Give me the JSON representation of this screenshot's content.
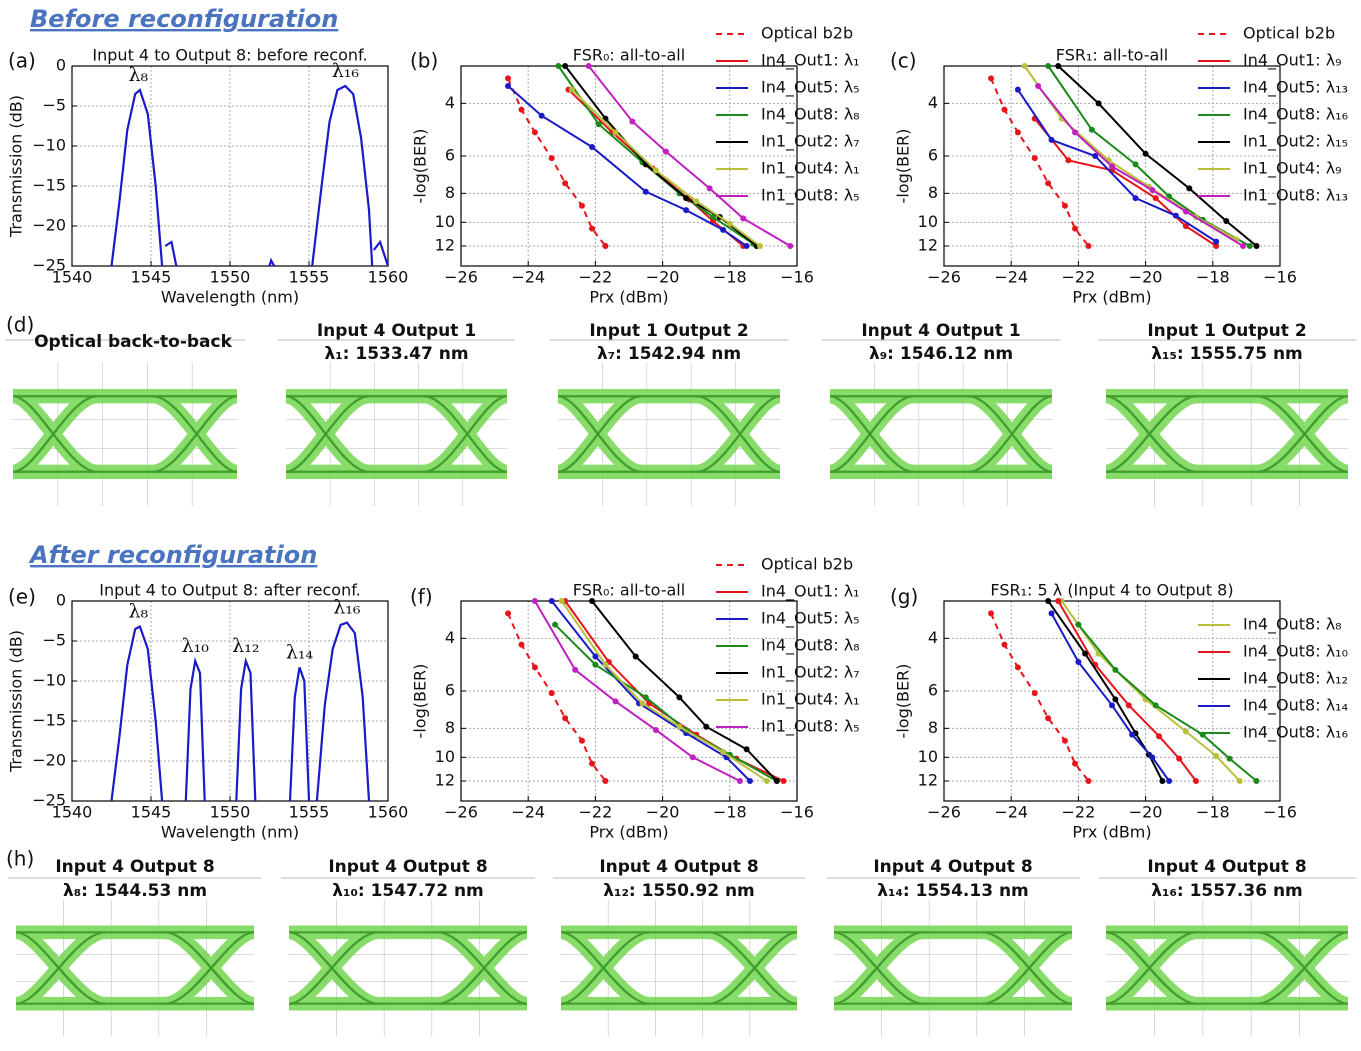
{
  "sections": [
    "Before reconfiguration",
    "After reconfiguration"
  ],
  "panel_labels": [
    "(a)",
    "(b)",
    "(c)",
    "(d)",
    "(e)",
    "(f)",
    "(g)",
    "(h)"
  ],
  "chart_data": [
    {
      "type": "line",
      "title": "Input 4 to Output 8: before reconf.",
      "x_label": "Wavelength (nm)",
      "y_label": "Transmission (dB)",
      "xlim": [
        1540,
        1560
      ],
      "xticks": [
        1540,
        1545,
        1550,
        1555,
        1560
      ],
      "ylim": [
        -25,
        0
      ],
      "yticks": [
        0,
        {
          "value": -5,
          "label": "−5"
        },
        {
          "value": -10,
          "label": "−10"
        },
        {
          "value": -15,
          "label": "−15"
        },
        {
          "value": -20,
          "label": "−20"
        },
        {
          "value": -25,
          "label": "−25"
        }
      ],
      "grid": true,
      "series": [
        {
          "color": "#1a1ac8",
          "x": [
            1542.5,
            1543.0,
            1543.5,
            1544.0,
            1544.3,
            1544.8,
            1545.3,
            1545.7,
            1545.8,
            1545.9,
            1546.3,
            1546.6,
            1549,
            1552.5,
            1552.6,
            1552.8,
            1554,
            1555.2,
            1555.8,
            1556.3,
            1556.8,
            1557.3,
            1557.8,
            1558.3,
            1558.8,
            1559.0,
            1559.05,
            1559.1,
            1559.5,
            1560
          ],
          "values": [
            -25,
            -17,
            -8,
            -3.5,
            -3.0,
            -6,
            -15,
            -25,
            null,
            -22.5,
            -22,
            -25,
            null,
            -25,
            -24.3,
            -25,
            null,
            -25,
            -15,
            -7,
            -3,
            -2.5,
            -3.5,
            -9,
            -18,
            -25,
            null,
            -23,
            -22,
            -25
          ]
        }
      ],
      "annotations": [
        {
          "text": "λ₈",
          "x": 1544.2,
          "y": -3
        },
        {
          "text": "λ₁₆",
          "x": 1557.3,
          "y": -2.5
        }
      ]
    },
    {
      "type": "line",
      "markers": true,
      "title": "FSR₀: all-to-all",
      "x_label": "Prx (dBm)",
      "y_label": "-log(BER)",
      "xlim": [
        -26,
        -16
      ],
      "xticks": [
        {
          "value": -26,
          "label": "−26"
        },
        {
          "value": -24,
          "label": "−24"
        },
        {
          "value": -22,
          "label": "−22"
        },
        {
          "value": -20,
          "label": "−20"
        },
        {
          "value": -18,
          "label": "−18"
        },
        {
          "value": -16,
          "label": "−16"
        }
      ],
      "ylim": [
        3,
        14
      ],
      "log_y": true,
      "y_inverted": true,
      "yticks": [
        4,
        6,
        8,
        10,
        12
      ],
      "grid": true,
      "legend": "outside right",
      "series": [
        {
          "name": "Optical b2b",
          "color": "#e8141c",
          "dashed": true,
          "x": [
            -24.6,
            -24.2,
            -23.8,
            -23.3,
            -22.9,
            -22.4,
            -22.1,
            -21.7
          ],
          "values": [
            3.3,
            4.2,
            5.0,
            6.1,
            7.4,
            8.8,
            10.5,
            12
          ]
        },
        {
          "name": "In4_Out1: λ₁",
          "color": "#e8141c",
          "x": [
            -22.8,
            -21.5,
            -20.3,
            -19.2,
            -18.5,
            -17.6
          ],
          "values": [
            3.6,
            5.0,
            6.6,
            8.4,
            9.9,
            12
          ]
        },
        {
          "name": "In4_Out5: λ₅",
          "color": "#1a1ac8",
          "x": [
            -24.6,
            -23.6,
            -22.1,
            -20.5,
            -19.3,
            -18.2,
            -17.5
          ],
          "values": [
            3.5,
            4.4,
            5.6,
            7.9,
            9.1,
            10.6,
            12
          ]
        },
        {
          "name": "In4_Out8: λ₈",
          "color": "#1a8a1a",
          "x": [
            -23.1,
            -21.9,
            -20.6,
            -19.5,
            -18.5,
            -17.3
          ],
          "values": [
            3.0,
            4.7,
            6.3,
            8.0,
            9.6,
            11.8
          ]
        },
        {
          "name": "In1_Out2: λ₇",
          "color": "#000000",
          "x": [
            -22.9,
            -21.7,
            -20.5,
            -19.3,
            -18.3,
            -17.2
          ],
          "values": [
            3.0,
            4.5,
            6.4,
            8.3,
            9.6,
            12
          ]
        },
        {
          "name": "In1_Out4: λ₁",
          "color": "#b8c03a",
          "x": [
            -22.7,
            -21.4,
            -20.2,
            -19.0,
            -18.0,
            -17.1
          ],
          "values": [
            3.6,
            5.0,
            6.7,
            8.5,
            10.1,
            12
          ]
        },
        {
          "name": "In1_Out8: λ₅",
          "color": "#c020c0",
          "x": [
            -22.2,
            -20.9,
            -19.9,
            -18.6,
            -17.6,
            -16.2
          ],
          "values": [
            3.0,
            4.6,
            5.8,
            7.7,
            9.7,
            12
          ]
        }
      ]
    },
    {
      "type": "line",
      "markers": true,
      "title": "FSR₁: all-to-all",
      "x_label": "Prx (dBm)",
      "y_label": "-log(BER)",
      "xlim": [
        -26,
        -16
      ],
      "xticks": [
        {
          "value": -26,
          "label": "−26"
        },
        {
          "value": -24,
          "label": "−24"
        },
        {
          "value": -22,
          "label": "−22"
        },
        {
          "value": -20,
          "label": "−20"
        },
        {
          "value": -18,
          "label": "−18"
        },
        {
          "value": -16,
          "label": "−16"
        }
      ],
      "ylim": [
        3,
        14
      ],
      "log_y": true,
      "y_inverted": true,
      "yticks": [
        4,
        6,
        8,
        10,
        12
      ],
      "grid": true,
      "legend": "outside right",
      "series": [
        {
          "name": "Optical b2b",
          "color": "#e8141c",
          "dashed": true,
          "x": [
            -24.6,
            -24.2,
            -23.8,
            -23.3,
            -22.9,
            -22.4,
            -22.1,
            -21.7
          ],
          "values": [
            3.3,
            4.2,
            5.0,
            6.1,
            7.4,
            8.8,
            10.5,
            12
          ]
        },
        {
          "name": "In4_Out1: λ₉",
          "color": "#e8141c",
          "x": [
            -23.3,
            -22.3,
            -21.0,
            -19.7,
            -18.8,
            -17.9
          ],
          "values": [
            4.5,
            6.2,
            6.7,
            8.3,
            10.3,
            12
          ]
        },
        {
          "name": "In4_Out5: λ₁₃",
          "color": "#1a1ac8",
          "x": [
            -23.8,
            -22.8,
            -21.5,
            -20.3,
            -19.1,
            -17.9
          ],
          "values": [
            3.6,
            5.3,
            6.0,
            8.3,
            9.5,
            11.6
          ]
        },
        {
          "name": "In4_Out8: λ₁₆",
          "color": "#1a8a1a",
          "x": [
            -22.9,
            -21.6,
            -20.3,
            -19.3,
            -18.3,
            -16.9
          ],
          "values": [
            3.0,
            4.9,
            6.4,
            8.2,
            9.8,
            12
          ]
        },
        {
          "name": "In1_Out2: λ₁₅",
          "color": "#000000",
          "x": [
            -22.6,
            -21.4,
            -20.0,
            -18.7,
            -17.6,
            -16.7
          ],
          "values": [
            3.0,
            4.0,
            5.9,
            7.7,
            9.9,
            12
          ]
        },
        {
          "name": "In1_Out4: λ₉",
          "color": "#b8c03a",
          "x": [
            -23.6,
            -22.5,
            -21.1,
            -19.9,
            -18.5,
            -17.3
          ],
          "values": [
            3.0,
            4.5,
            6.2,
            7.6,
            9.6,
            11.4
          ]
        },
        {
          "name": "In1_Out8: λ₁₃",
          "color": "#c020c0",
          "x": [
            -23.2,
            -22.1,
            -21.0,
            -19.8,
            -18.8,
            -17.1
          ],
          "values": [
            3.5,
            5.0,
            6.5,
            7.8,
            9.2,
            12
          ]
        }
      ]
    },
    {
      "type": "line",
      "title": "Input 4 to Output 8: after reconf.",
      "x_label": "Wavelength (nm)",
      "y_label": "Transmission (dB)",
      "xlim": [
        1540,
        1560
      ],
      "xticks": [
        1540,
        1545,
        1550,
        1555,
        1560
      ],
      "ylim": [
        -25,
        0
      ],
      "yticks": [
        0,
        {
          "value": -5,
          "label": "−5"
        },
        {
          "value": -10,
          "label": "−10"
        },
        {
          "value": -15,
          "label": "−15"
        },
        {
          "value": -20,
          "label": "−20"
        },
        {
          "value": -25,
          "label": "−25"
        }
      ],
      "grid": true,
      "series": [
        {
          "color": "#1a1ac8",
          "x": [
            1542.5,
            1543,
            1543.5,
            1544,
            1544.3,
            1544.8,
            1545.3,
            1545.7,
            1546.5,
            1547.2,
            1547.5,
            1547.8,
            1548.1,
            1548.4,
            1549.5,
            1550.4,
            1550.7,
            1551.0,
            1551.3,
            1551.6,
            1552.7,
            1553.8,
            1554.1,
            1554.4,
            1554.7,
            1555.0,
            1555.2,
            1555.5,
            1556,
            1556.5,
            1557,
            1557.4,
            1557.9,
            1558.4,
            1558.8
          ],
          "values": [
            -25,
            -17,
            -8,
            -3.5,
            -3.2,
            -6,
            -15,
            -25,
            null,
            -25,
            -11,
            -7.5,
            -9,
            -25,
            null,
            -25,
            -11,
            -7.5,
            -9,
            -25,
            null,
            -25,
            -12,
            -8.3,
            -10,
            -25,
            null,
            -25,
            -13,
            -6,
            -3,
            -2.7,
            -4,
            -12,
            -25
          ]
        }
      ],
      "annotations": [
        {
          "text": "λ₈",
          "x": 1544.2,
          "y": -3.2
        },
        {
          "text": "λ₁₀",
          "x": 1547.8,
          "y": -7.5
        },
        {
          "text": "λ₁₂",
          "x": 1551,
          "y": -7.5
        },
        {
          "text": "λ₁₄",
          "x": 1554.4,
          "y": -8.3
        },
        {
          "text": "λ₁₆",
          "x": 1557.4,
          "y": -2.7
        }
      ]
    },
    {
      "type": "line",
      "markers": true,
      "title": "FSR₀: all-to-all",
      "x_label": "Prx (dBm)",
      "y_label": "-log(BER)",
      "xlim": [
        -26,
        -16
      ],
      "xticks": [
        {
          "value": -26,
          "label": "−26"
        },
        {
          "value": -24,
          "label": "−24"
        },
        {
          "value": -22,
          "label": "−22"
        },
        {
          "value": -20,
          "label": "−20"
        },
        {
          "value": -18,
          "label": "−18"
        },
        {
          "value": -16,
          "label": "−16"
        }
      ],
      "ylim": [
        3,
        14
      ],
      "log_y": true,
      "y_inverted": true,
      "yticks": [
        4,
        6,
        8,
        10,
        12
      ],
      "grid": true,
      "legend": "outside right",
      "series": [
        {
          "name": "Optical b2b",
          "color": "#e8141c",
          "dashed": true,
          "x": [
            -24.6,
            -24.2,
            -23.8,
            -23.3,
            -22.9,
            -22.4,
            -22.1,
            -21.7
          ],
          "values": [
            3.3,
            4.2,
            5.0,
            6.1,
            7.4,
            8.8,
            10.5,
            12
          ]
        },
        {
          "name": "In4_Out1: λ₁",
          "color": "#e8141c",
          "x": [
            -22.9,
            -21.6,
            -20.4,
            -19.0,
            -17.8,
            -16.4
          ],
          "values": [
            3.0,
            4.8,
            6.6,
            8.4,
            10.1,
            12
          ]
        },
        {
          "name": "In4_Out5: λ₅",
          "color": "#1a1ac8",
          "x": [
            -23.3,
            -22.0,
            -20.7,
            -19.3,
            -18.1,
            -17.4
          ],
          "values": [
            3.0,
            4.6,
            6.6,
            8.3,
            10.0,
            12
          ]
        },
        {
          "name": "In4_Out8: λ₈",
          "color": "#1a8a1a",
          "x": [
            -23.2,
            -22.0,
            -20.5,
            -19.3,
            -18.0,
            -16.6
          ],
          "values": [
            3.6,
            4.9,
            6.3,
            8.1,
            9.8,
            12
          ]
        },
        {
          "name": "In1_Out2: λ₇",
          "color": "#000000",
          "x": [
            -22.1,
            -20.8,
            -19.5,
            -18.7,
            -17.5,
            -16.6
          ],
          "values": [
            3.0,
            4.6,
            6.3,
            7.9,
            9.4,
            12
          ]
        },
        {
          "name": "In1_Out4: λ₁",
          "color": "#b8c03a",
          "x": [
            -23.0,
            -21.7,
            -20.6,
            -19.5,
            -18.2,
            -16.9
          ],
          "values": [
            3.0,
            4.9,
            6.6,
            7.9,
            9.6,
            12
          ]
        },
        {
          "name": "In1_Out8: λ₅",
          "color": "#c020c0",
          "x": [
            -23.8,
            -22.6,
            -21.4,
            -20.2,
            -19.1,
            -17.7
          ],
          "values": [
            3.0,
            5.1,
            6.5,
            8.1,
            10.0,
            12
          ]
        }
      ]
    },
    {
      "type": "line",
      "markers": true,
      "title": "FSR₁: 5 λ (Input 4 to Output 8)",
      "x_label": "Prx (dBm)",
      "y_label": "-log(BER)",
      "xlim": [
        -26,
        -16
      ],
      "xticks": [
        {
          "value": -26,
          "label": "−26"
        },
        {
          "value": -24,
          "label": "−24"
        },
        {
          "value": -22,
          "label": "−22"
        },
        {
          "value": -20,
          "label": "−20"
        },
        {
          "value": -18,
          "label": "−18"
        },
        {
          "value": -16,
          "label": "−16"
        }
      ],
      "ylim": [
        3,
        14
      ],
      "log_y": true,
      "y_inverted": true,
      "yticks": [
        4,
        6,
        8,
        10,
        12
      ],
      "grid": true,
      "legend": "outside right",
      "series": [
        {
          "color": "#e8141c",
          "dashed": true,
          "x": [
            -24.6,
            -24.2,
            -23.8,
            -23.3,
            -22.9,
            -22.4,
            -22.1,
            -21.7
          ],
          "values": [
            3.3,
            4.2,
            5.0,
            6.1,
            7.4,
            8.8,
            10.5,
            12
          ]
        },
        {
          "name": "In4_Out8: λ₈",
          "color": "#b8c03a",
          "x": [
            -22.5,
            -21.4,
            -20.0,
            -18.8,
            -17.9,
            -17.2
          ],
          "values": [
            3.0,
            4.5,
            6.4,
            8.2,
            9.9,
            12
          ]
        },
        {
          "name": "In4_Out8: λ₁₀",
          "color": "#e8141c",
          "x": [
            -22.6,
            -21.5,
            -20.5,
            -19.6,
            -19.0,
            -18.5
          ],
          "values": [
            3.0,
            4.9,
            6.7,
            8.5,
            10.1,
            12
          ]
        },
        {
          "name": "In4_Out8: λ₁₂",
          "color": "#000000",
          "x": [
            -22.9,
            -21.8,
            -20.9,
            -20.3,
            -19.9,
            -19.5
          ],
          "values": [
            3.0,
            4.5,
            6.4,
            8.3,
            9.8,
            12
          ]
        },
        {
          "name": "In4_Out8: λ₁₄",
          "color": "#1a1ac8",
          "x": [
            -22.8,
            -22.0,
            -21.0,
            -20.4,
            -19.8,
            -19.3
          ],
          "values": [
            3.3,
            4.8,
            6.7,
            8.4,
            10.0,
            12
          ]
        },
        {
          "name": "In4_Out8: λ₁₆",
          "color": "#1a8a1a",
          "x": [
            -22.0,
            -20.9,
            -19.7,
            -18.3,
            -17.5,
            -16.7
          ],
          "values": [
            3.6,
            5.1,
            6.7,
            8.4,
            10.1,
            12
          ]
        }
      ]
    }
  ],
  "eye_diagrams": {
    "before": [
      {
        "title": "Optical back-to-back"
      },
      {
        "title": "Input 4 Output 1",
        "subtitle": "λ₁: 1533.47 nm"
      },
      {
        "title": "Input 1 Output 2",
        "subtitle": "λ₇: 1542.94 nm"
      },
      {
        "title": "Input 4 Output 1",
        "subtitle": "λ₉: 1546.12 nm"
      },
      {
        "title": "Input 1 Output 2",
        "subtitle": "λ₁₅: 1555.75 nm"
      }
    ],
    "after": [
      {
        "title": "Input 4 Output 8",
        "subtitle": "λ₈: 1544.53 nm"
      },
      {
        "title": "Input 4 Output 8",
        "subtitle": "λ₁₀: 1547.72 nm"
      },
      {
        "title": "Input 4 Output 8",
        "subtitle": "λ₁₂: 1550.92 nm"
      },
      {
        "title": "Input 4 Output 8",
        "subtitle": "λ₁₄: 1554.13 nm"
      },
      {
        "title": "Input 4 Output 8",
        "subtitle": "λ₁₆: 1557.36 nm"
      }
    ]
  }
}
